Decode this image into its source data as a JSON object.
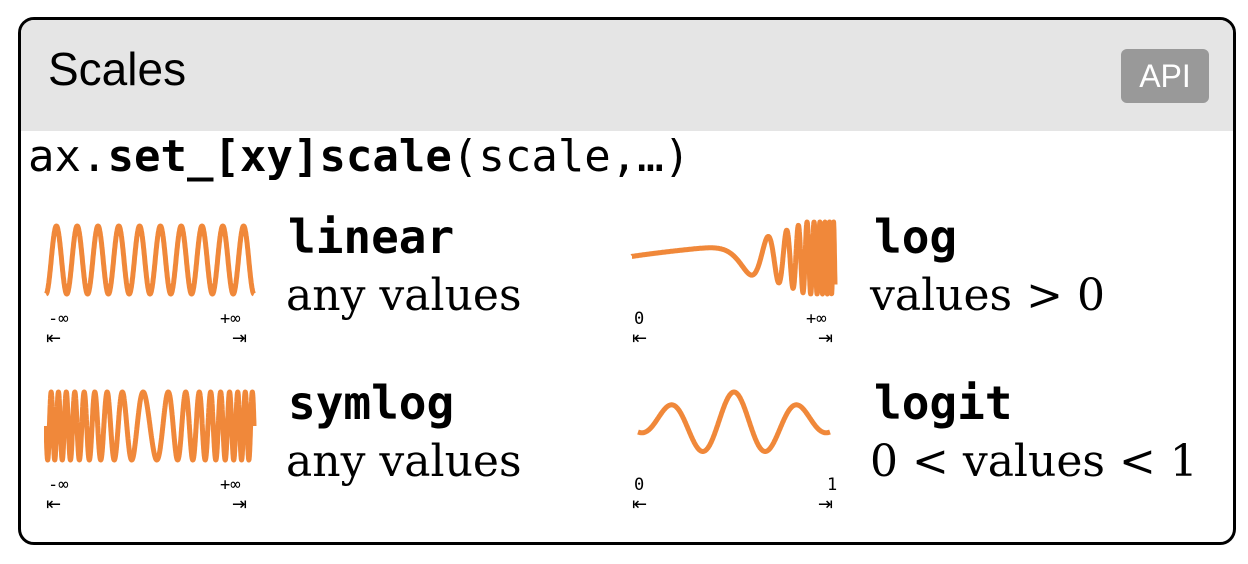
{
  "card": {
    "title": "Scales",
    "api_badge": "API"
  },
  "signature": {
    "prefix": "ax.",
    "method": "set_[xy]scale",
    "args": "(scale,…)"
  },
  "colors": {
    "curve": "#f0883a",
    "header_bg": "#e5e5e5",
    "badge_bg": "#999999"
  },
  "scales": [
    {
      "name": "linear",
      "description": "any values",
      "min_label": "-∞",
      "max_label": "+∞",
      "icon": "linear-wave"
    },
    {
      "name": "log",
      "description": "values > 0",
      "min_label": "0",
      "max_label": "+∞",
      "icon": "log-wave"
    },
    {
      "name": "symlog",
      "description": "any values",
      "min_label": "-∞",
      "max_label": "+∞",
      "icon": "symlog-wave"
    },
    {
      "name": "logit",
      "description": "0 < values < 1",
      "min_label": "0",
      "max_label": "1",
      "icon": "logit-wave"
    }
  ],
  "arrows": {
    "left": "⇤",
    "right": "⇥"
  }
}
